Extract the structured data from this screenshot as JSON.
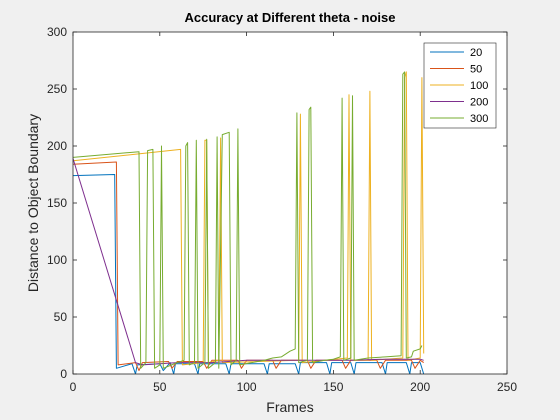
{
  "chart_data": {
    "type": "line",
    "title": "Accuracy at Different theta - noise",
    "xlabel": "Frames",
    "ylabel": "Distance to Object Boundary",
    "xlim": [
      0,
      250
    ],
    "ylim": [
      0,
      300
    ],
    "xticks": [
      "0",
      "50",
      "100",
      "150",
      "200",
      "250"
    ],
    "yticks": [
      "0",
      "50",
      "100",
      "150",
      "200",
      "250",
      "300"
    ],
    "grid": false,
    "legend": "top-right",
    "series": [
      {
        "name": "20",
        "color": "#0072BD",
        "points": [
          [
            0,
            174
          ],
          [
            24,
            175
          ],
          [
            25,
            5
          ],
          [
            34,
            9
          ],
          [
            36,
            0
          ],
          [
            37,
            8
          ],
          [
            50,
            9
          ],
          [
            52,
            3
          ],
          [
            56,
            10
          ],
          [
            58,
            0
          ],
          [
            59,
            9
          ],
          [
            70,
            9
          ],
          [
            72,
            0
          ],
          [
            73,
            9
          ],
          [
            88,
            9
          ],
          [
            90,
            0
          ],
          [
            91,
            9
          ],
          [
            110,
            9
          ],
          [
            112,
            0
          ],
          [
            113,
            9
          ],
          [
            128,
            9
          ],
          [
            130,
            0
          ],
          [
            131,
            10
          ],
          [
            146,
            10
          ],
          [
            148,
            0
          ],
          [
            149,
            10
          ],
          [
            160,
            10
          ],
          [
            162,
            0
          ],
          [
            163,
            10
          ],
          [
            178,
            10
          ],
          [
            180,
            0
          ],
          [
            181,
            10
          ],
          [
            192,
            10
          ],
          [
            194,
            0
          ],
          [
            195,
            10
          ],
          [
            200,
            10
          ],
          [
            202,
            0
          ]
        ]
      },
      {
        "name": "50",
        "color": "#D95319",
        "points": [
          [
            0,
            184
          ],
          [
            25,
            186
          ],
          [
            26,
            8
          ],
          [
            36,
            10
          ],
          [
            38,
            3
          ],
          [
            40,
            10
          ],
          [
            55,
            11
          ],
          [
            57,
            5
          ],
          [
            60,
            11
          ],
          [
            75,
            11
          ],
          [
            77,
            5
          ],
          [
            80,
            12
          ],
          [
            95,
            12
          ],
          [
            97,
            5
          ],
          [
            100,
            12
          ],
          [
            115,
            12
          ],
          [
            117,
            5
          ],
          [
            120,
            12
          ],
          [
            135,
            12
          ],
          [
            137,
            5
          ],
          [
            140,
            12
          ],
          [
            155,
            12
          ],
          [
            157,
            5
          ],
          [
            160,
            12
          ],
          [
            175,
            12
          ],
          [
            177,
            5
          ],
          [
            180,
            12
          ],
          [
            195,
            12
          ],
          [
            197,
            5
          ],
          [
            200,
            12
          ],
          [
            202,
            10
          ]
        ]
      },
      {
        "name": "100",
        "color": "#EDB120",
        "points": [
          [
            0,
            187
          ],
          [
            62,
            197
          ],
          [
            63,
            8
          ],
          [
            75,
            10
          ],
          [
            76,
            205
          ],
          [
            77,
            205
          ],
          [
            78,
            10
          ],
          [
            84,
            12
          ],
          [
            85,
            207
          ],
          [
            86,
            10
          ],
          [
            130,
            12
          ],
          [
            131,
            228
          ],
          [
            132,
            10
          ],
          [
            158,
            14
          ],
          [
            159,
            245
          ],
          [
            160,
            12
          ],
          [
            170,
            12
          ],
          [
            171,
            248
          ],
          [
            172,
            12
          ],
          [
            190,
            14
          ],
          [
            191,
            260
          ],
          [
            192,
            265
          ],
          [
            193,
            12
          ],
          [
            200,
            14
          ],
          [
            201,
            260
          ],
          [
            202,
            18
          ]
        ]
      },
      {
        "name": "200",
        "color": "#7E2F8E",
        "points": [
          [
            0,
            189
          ],
          [
            36,
            10
          ],
          [
            40,
            8
          ],
          [
            60,
            10
          ],
          [
            80,
            10
          ],
          [
            100,
            12
          ],
          [
            120,
            12
          ],
          [
            140,
            12
          ],
          [
            160,
            12
          ],
          [
            180,
            13
          ],
          [
            200,
            13
          ],
          [
            202,
            12
          ]
        ]
      },
      {
        "name": "300",
        "color": "#77AC30",
        "points": [
          [
            0,
            190
          ],
          [
            38,
            195
          ],
          [
            39,
            5
          ],
          [
            42,
            10
          ],
          [
            43,
            196
          ],
          [
            46,
            197
          ],
          [
            47,
            5
          ],
          [
            50,
            8
          ],
          [
            51,
            200
          ],
          [
            52,
            5
          ],
          [
            60,
            10
          ],
          [
            64,
            12
          ],
          [
            65,
            200
          ],
          [
            66,
            203
          ],
          [
            67,
            8
          ],
          [
            70,
            10
          ],
          [
            71,
            205
          ],
          [
            72,
            5
          ],
          [
            76,
            10
          ],
          [
            77,
            206
          ],
          [
            78,
            5
          ],
          [
            82,
            10
          ],
          [
            83,
            208
          ],
          [
            84,
            5
          ],
          [
            86,
            210
          ],
          [
            90,
            212
          ],
          [
            91,
            8
          ],
          [
            94,
            12
          ],
          [
            95,
            215
          ],
          [
            96,
            8
          ],
          [
            110,
            12
          ],
          [
            115,
            14
          ],
          [
            120,
            15
          ],
          [
            125,
            20
          ],
          [
            128,
            22
          ],
          [
            129,
            229
          ],
          [
            130,
            10
          ],
          [
            135,
            12
          ],
          [
            136,
            232
          ],
          [
            137,
            234
          ],
          [
            138,
            10
          ],
          [
            145,
            12
          ],
          [
            150,
            13
          ],
          [
            154,
            15
          ],
          [
            155,
            242
          ],
          [
            156,
            12
          ],
          [
            160,
            14
          ],
          [
            161,
            244
          ],
          [
            162,
            12
          ],
          [
            170,
            14
          ],
          [
            180,
            15
          ],
          [
            189,
            16
          ],
          [
            190,
            263
          ],
          [
            191,
            265
          ],
          [
            192,
            14
          ],
          [
            195,
            15
          ],
          [
            196,
            20
          ],
          [
            200,
            22
          ],
          [
            201,
            25
          ]
        ]
      }
    ]
  }
}
